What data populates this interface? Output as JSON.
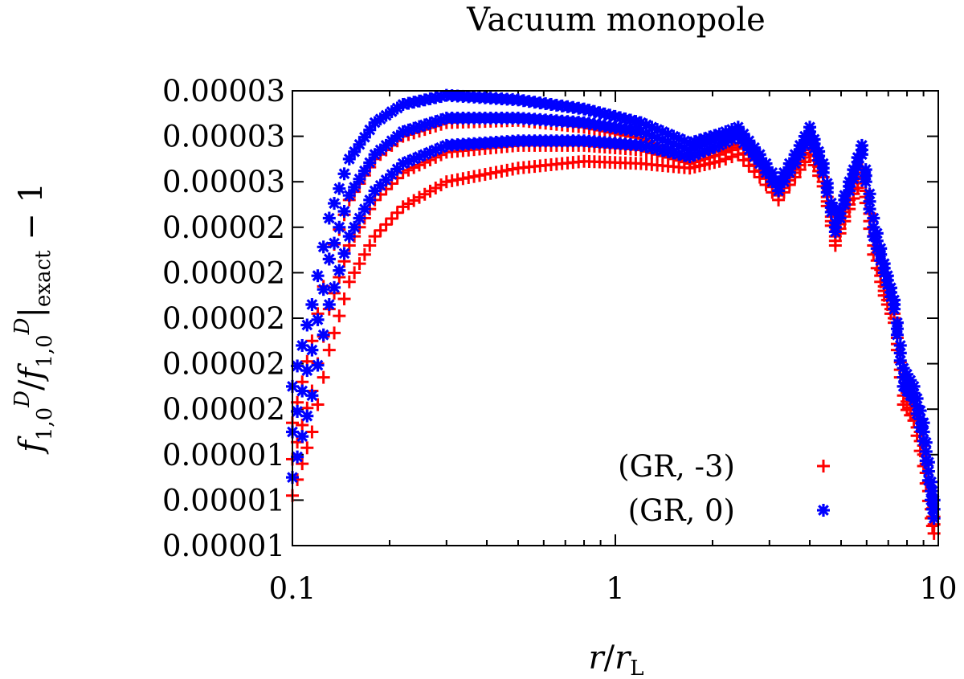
{
  "chart_data": {
    "type": "scatter",
    "title": "Vacuum monopole",
    "xlabel": "r/r_L",
    "ylabel": "f^D_{1,0}/f^D_{1,0}|_exact − 1",
    "xscale": "log",
    "xlim": [
      0.1,
      10
    ],
    "ylim": [
      1e-05,
      3e-05
    ],
    "x_ticks": [
      {
        "value": 0.1,
        "label": "0.1"
      },
      {
        "value": 1,
        "label": "1"
      },
      {
        "value": 10,
        "label": "10"
      }
    ],
    "y_ticks": [
      {
        "value": 3e-05,
        "label": "0.00003"
      },
      {
        "value": 2.8e-05,
        "label": "0.00003"
      },
      {
        "value": 2.6e-05,
        "label": "0.00003"
      },
      {
        "value": 2.4e-05,
        "label": "0.00002"
      },
      {
        "value": 2.2e-05,
        "label": "0.00002"
      },
      {
        "value": 2e-05,
        "label": "0.00002"
      },
      {
        "value": 1.8e-05,
        "label": "0.00002"
      },
      {
        "value": 1.6e-05,
        "label": "0.00002"
      },
      {
        "value": 1.4e-05,
        "label": "0.00001"
      },
      {
        "value": 1.2e-05,
        "label": "0.00001"
      },
      {
        "value": 1e-05,
        "label": "0.00001"
      }
    ],
    "legend_position": "bottom-right",
    "series": [
      {
        "name": "(GR, -3)",
        "marker": "plus",
        "color": "#ff0000",
        "bands": [
          {
            "x": [
              0.1,
              0.115,
              0.13,
              0.15,
              0.18,
              0.22,
              0.3,
              0.5,
              0.8,
              1.2,
              1.7,
              2.1,
              2.4,
              2.8,
              3.2,
              3.6,
              4.0,
              4.4,
              4.8,
              5.3,
              5.8,
              6.3,
              6.8,
              7.3,
              7.8,
              8.4,
              9.0,
              9.5,
              9.8
            ],
            "y": [
              1.22e-05,
              1.5e-05,
              1.86e-05,
              2.16e-05,
              2.36e-05,
              2.49e-05,
              2.6e-05,
              2.66e-05,
              2.69e-05,
              2.68e-05,
              2.66e-05,
              2.69e-05,
              2.72e-05,
              2.62e-05,
              2.52e-05,
              2.62e-05,
              2.72e-05,
              2.58e-05,
              2.32e-05,
              2.48e-05,
              2.62e-05,
              2.28e-05,
              2.1e-05,
              1.98e-05,
              1.62e-05,
              1.55e-05,
              1.35e-05,
              1.12e-05,
              1.02e-05
            ]
          },
          {
            "x": [
              0.1,
              0.115,
              0.13,
              0.15,
              0.18,
              0.22,
              0.3,
              0.5,
              0.8,
              1.2,
              1.7,
              2.1,
              2.4,
              2.8,
              3.2,
              3.6,
              4.0,
              4.4,
              4.8,
              5.3,
              5.8,
              6.3,
              6.8,
              7.3,
              7.8,
              8.4,
              9.0,
              9.5,
              9.8
            ],
            "y": [
              1.38e-05,
              1.68e-05,
              2.04e-05,
              2.32e-05,
              2.52e-05,
              2.64e-05,
              2.73e-05,
              2.76e-05,
              2.76e-05,
              2.74e-05,
              2.68e-05,
              2.72e-05,
              2.75e-05,
              2.65e-05,
              2.54e-05,
              2.64e-05,
              2.74e-05,
              2.6e-05,
              2.34e-05,
              2.5e-05,
              2.64e-05,
              2.32e-05,
              2.12e-05,
              2e-05,
              1.66e-05,
              1.58e-05,
              1.4e-05,
              1.16e-05,
              1.06e-05
            ]
          },
          {
            "x": [
              0.1,
              0.115,
              0.13,
              0.15,
              0.18,
              0.22,
              0.3,
              0.5,
              0.8,
              1.2,
              1.7,
              2.1,
              2.4,
              2.8,
              3.2,
              3.6,
              4.0,
              4.4,
              4.8,
              5.3,
              5.8,
              6.3,
              6.8,
              7.3,
              7.8,
              8.4,
              9.0,
              9.5,
              9.8
            ],
            "y": [
              1.54e-05,
              1.9e-05,
              2.26e-05,
              2.52e-05,
              2.7e-05,
              2.8e-05,
              2.86e-05,
              2.87e-05,
              2.84e-05,
              2.79e-05,
              2.7e-05,
              2.74e-05,
              2.77e-05,
              2.67e-05,
              2.56e-05,
              2.66e-05,
              2.76e-05,
              2.62e-05,
              2.36e-05,
              2.52e-05,
              2.66e-05,
              2.36e-05,
              2.14e-05,
              2.02e-05,
              1.7e-05,
              1.62e-05,
              1.44e-05,
              1.2e-05,
              1.09e-05
            ]
          }
        ]
      },
      {
        "name": "(GR, 0)",
        "marker": "star",
        "color": "#0000ff",
        "bands": [
          {
            "x": [
              0.1,
              0.115,
              0.13,
              0.15,
              0.18,
              0.22,
              0.3,
              0.5,
              0.8,
              1.2,
              1.7,
              2.1,
              2.4,
              2.8,
              3.2,
              3.6,
              4.0,
              4.4,
              4.8,
              5.3,
              5.8,
              6.3,
              6.8,
              7.3,
              7.8,
              8.4,
              9.0,
              9.5,
              9.8
            ],
            "y": [
              1.3e-05,
              1.66e-05,
              2.06e-05,
              2.36e-05,
              2.56e-05,
              2.68e-05,
              2.76e-05,
              2.78e-05,
              2.78e-05,
              2.76e-05,
              2.71e-05,
              2.76e-05,
              2.8e-05,
              2.68e-05,
              2.56e-05,
              2.68e-05,
              2.8e-05,
              2.64e-05,
              2.38e-05,
              2.56e-05,
              2.72e-05,
              2.36e-05,
              2.2e-05,
              2.04e-05,
              1.7e-05,
              1.64e-05,
              1.46e-05,
              1.2e-05,
              1.08e-05
            ]
          },
          {
            "x": [
              0.1,
              0.115,
              0.13,
              0.15,
              0.18,
              0.22,
              0.3,
              0.5,
              0.8,
              1.2,
              1.7,
              2.1,
              2.4,
              2.8,
              3.2,
              3.6,
              4.0,
              4.4,
              4.8,
              5.3,
              5.8,
              6.3,
              6.8,
              7.3,
              7.8,
              8.4,
              9.0,
              9.5,
              9.8
            ],
            "y": [
              1.5e-05,
              1.86e-05,
              2.26e-05,
              2.54e-05,
              2.72e-05,
              2.82e-05,
              2.88e-05,
              2.88e-05,
              2.86e-05,
              2.82e-05,
              2.74e-05,
              2.79e-05,
              2.82e-05,
              2.7e-05,
              2.58e-05,
              2.7e-05,
              2.82e-05,
              2.66e-05,
              2.4e-05,
              2.58e-05,
              2.74e-05,
              2.4e-05,
              2.22e-05,
              2.06e-05,
              1.74e-05,
              1.67e-05,
              1.5e-05,
              1.24e-05,
              1.12e-05
            ]
          },
          {
            "x": [
              0.1,
              0.115,
              0.13,
              0.15,
              0.18,
              0.22,
              0.3,
              0.5,
              0.8,
              1.2,
              1.7,
              2.1,
              2.4,
              2.8,
              3.2,
              3.6,
              4.0,
              4.4,
              4.8,
              5.3,
              5.8,
              6.3,
              6.8,
              7.3,
              7.8,
              8.4,
              9.0,
              9.5,
              9.8
            ],
            "y": [
              1.7e-05,
              2.06e-05,
              2.44e-05,
              2.7e-05,
              2.86e-05,
              2.94e-05,
              2.98e-05,
              2.96e-05,
              2.92e-05,
              2.86e-05,
              2.77e-05,
              2.81e-05,
              2.84e-05,
              2.72e-05,
              2.6e-05,
              2.72e-05,
              2.84e-05,
              2.68e-05,
              2.42e-05,
              2.6e-05,
              2.76e-05,
              2.44e-05,
              2.24e-05,
              2.08e-05,
              1.78e-05,
              1.7e-05,
              1.54e-05,
              1.28e-05,
              1.16e-05
            ]
          }
        ]
      }
    ]
  }
}
